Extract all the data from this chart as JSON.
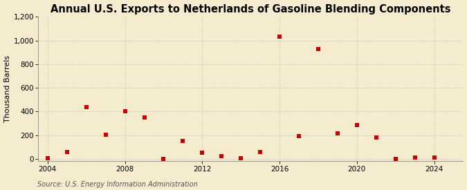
{
  "title": "Annual U.S. Exports to Netherlands of Gasoline Blending Components",
  "ylabel": "Thousand Barrels",
  "source": "Source: U.S. Energy Information Administration",
  "background_color": "#f5eccf",
  "plot_bg_color": "#ffffff",
  "marker_color": "#cc0000",
  "years": [
    2004,
    2005,
    2006,
    2007,
    2008,
    2009,
    2010,
    2011,
    2012,
    2013,
    2014,
    2015,
    2016,
    2017,
    2018,
    2019,
    2020,
    2021,
    2022,
    2023,
    2024
  ],
  "values": [
    3,
    55,
    440,
    205,
    400,
    350,
    0,
    150,
    50,
    20,
    5,
    60,
    1035,
    190,
    930,
    215,
    285,
    180,
    0,
    10,
    10
  ],
  "ylim": [
    -20,
    1200
  ],
  "yticks": [
    0,
    200,
    400,
    600,
    800,
    1000,
    1200
  ],
  "xlim": [
    2003.5,
    2025.5
  ],
  "xticks": [
    2004,
    2008,
    2012,
    2016,
    2020,
    2024
  ],
  "title_fontsize": 10.5,
  "label_fontsize": 8,
  "tick_fontsize": 7.5,
  "source_fontsize": 7
}
